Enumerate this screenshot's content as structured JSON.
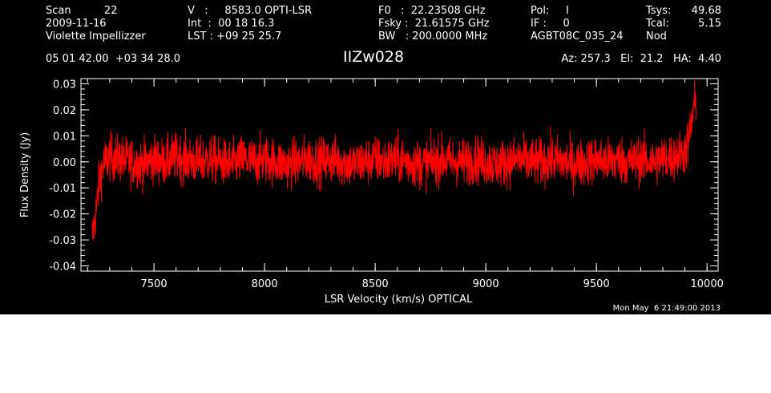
{
  "header": {
    "col1": [
      "Scan          22",
      "2009-11-16",
      "Violette Impellizzer"
    ],
    "col2": [
      "V   :     8583.0 OPTI-LSR",
      "Int  :  00 18 16.3",
      "LST : +09 25 25.7"
    ],
    "col3": [
      "F0   :  22.23508 GHz",
      "Fsky :  21.61575 GHz",
      "BW   : 200.0000 MHz"
    ],
    "col4": [
      "Pol:     I",
      "IF :     0",
      "AGBT08C_035_24"
    ],
    "col5_labels": [
      "Tsys:",
      "Tcal:",
      "Nod"
    ],
    "col5_values": [
      "49.68",
      "5.15",
      ""
    ],
    "coords": "05 01 42.00  +03 34 28.0",
    "source": "IIZw028",
    "azel": "Az: 257.3   El:  21.2   HA:  4.40"
  },
  "timestamp": "Mon May  6 21:49:00 2013",
  "colors": {
    "background": "#000000",
    "axes": "#ffffff",
    "trace": "#ff0000"
  },
  "chart_data": {
    "type": "line",
    "xlabel": "LSR Velocity (km/s) OPTICAL",
    "ylabel": "Flux Density (Jy)",
    "xlim": [
      7170,
      10050
    ],
    "ylim": [
      -0.042,
      0.032
    ],
    "xticks": [
      7500,
      8000,
      8500,
      9000,
      9500,
      10000
    ],
    "yticks": [
      -0.04,
      -0.03,
      -0.02,
      -0.01,
      0.0,
      0.01,
      0.02,
      0.03
    ],
    "ytick_labels": [
      "-0.04",
      "-0.03",
      "-0.02",
      "-0.01",
      "0.00",
      "0.01",
      "0.02",
      "0.03"
    ],
    "xtick_labels": [
      "7500",
      "8000",
      "8500",
      "9000",
      "9500",
      "10000"
    ],
    "grid": false,
    "series": [
      {
        "x": [
          7220,
          7230,
          7240,
          7250,
          7260,
          7280,
          7300,
          7350,
          7400,
          7450,
          7500,
          7550,
          7600,
          7650,
          7700,
          7750,
          7800,
          7850,
          7900,
          7950,
          8000,
          8050,
          8100,
          8150,
          8200,
          8250,
          8300,
          8350,
          8400,
          8450,
          8500,
          8550,
          8600,
          8650,
          8700,
          8750,
          8800,
          8850,
          8900,
          8950,
          9000,
          9050,
          9100,
          9150,
          9200,
          9250,
          9300,
          9350,
          9400,
          9450,
          9500,
          9550,
          9600,
          9650,
          9700,
          9750,
          9800,
          9850,
          9880,
          9900,
          9910,
          9920,
          9930,
          9940,
          9950
        ],
        "y": [
          -0.03,
          -0.024,
          -0.018,
          -0.01,
          -0.004,
          0.0,
          0.002,
          0.001,
          0.0,
          -0.001,
          0.001,
          0.0,
          0.002,
          0.001,
          0.0,
          0.001,
          0.0,
          -0.001,
          0.001,
          0.0,
          0.001,
          0.0,
          -0.001,
          0.0,
          0.001,
          0.0,
          0.001,
          0.0,
          -0.001,
          0.0,
          0.001,
          0.0,
          0.001,
          0.0,
          -0.001,
          0.0,
          0.001,
          0.0,
          0.0,
          0.001,
          0.0,
          -0.001,
          0.0,
          0.001,
          0.0,
          0.0,
          0.001,
          0.0,
          -0.001,
          0.0,
          0.001,
          0.0,
          0.001,
          0.0,
          0.001,
          0.0,
          0.001,
          0.002,
          0.003,
          0.004,
          0.006,
          0.01,
          0.015,
          0.02,
          0.024
        ],
        "noise_rms": 0.0045
      }
    ]
  }
}
